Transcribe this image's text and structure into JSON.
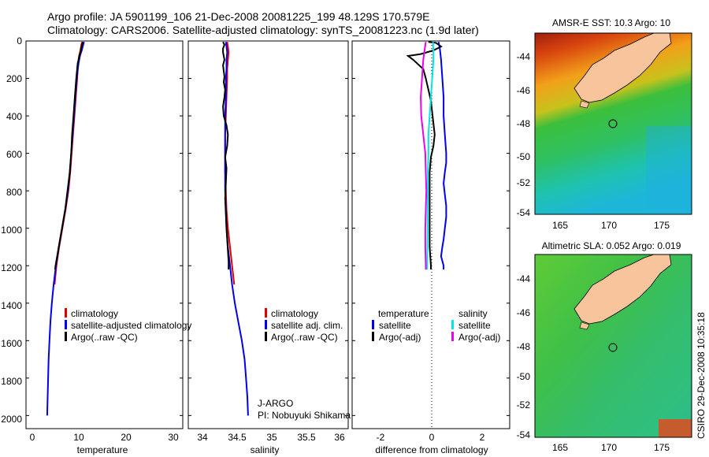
{
  "header": {
    "line1": "Argo profile: JA 5901199_106 21-Dec-2008 20081225_199 48.129S 170.579E",
    "line2": "Climatology: CARS2006. Satellite-adjusted climatology: synTS_20081223.nc (1.9d later)"
  },
  "credit": "CSIRO 29-Dec-2008 10:35:18",
  "colors": {
    "climatology": "#dd0000",
    "satellite_temp": "#0000ee",
    "argo": "#000000",
    "satellite_salt": "#00e5e5",
    "argo_salt_adj": "#ee00ee",
    "land": "#f7c49c"
  },
  "chart_data": [
    {
      "type": "line",
      "name": "temperature-profile",
      "xlabel": "temperature",
      "xticks": [
        "0",
        "10",
        "20",
        "30"
      ],
      "xlim": [
        -2,
        32
      ],
      "ylim": [
        0,
        2070
      ],
      "y_inverted": true,
      "yticks": [
        "0",
        "200",
        "400",
        "600",
        "800",
        "1000",
        "1200",
        "1400",
        "1600",
        "1800",
        "2000"
      ],
      "legend": [
        "climatology",
        "satellite-adjusted climatology",
        "Argo(..raw -QC)"
      ],
      "series": [
        {
          "name": "climatology",
          "points": [
            [
              10.2,
              5
            ],
            [
              10.0,
              20
            ],
            [
              9.8,
              50
            ],
            [
              9.5,
              80
            ],
            [
              9.3,
              120
            ],
            [
              9.1,
              200
            ],
            [
              8.8,
              300
            ],
            [
              8.5,
              400
            ],
            [
              8.2,
              500
            ],
            [
              7.9,
              600
            ],
            [
              7.6,
              700
            ],
            [
              7.2,
              800
            ],
            [
              6.6,
              900
            ],
            [
              5.9,
              1000
            ],
            [
              5.2,
              1100
            ],
            [
              4.6,
              1200
            ],
            [
              4.2,
              1300
            ]
          ]
        },
        {
          "name": "satellite-adjusted climatology",
          "points": [
            [
              10.6,
              5
            ],
            [
              10.4,
              20
            ],
            [
              10.1,
              50
            ],
            [
              9.7,
              80
            ],
            [
              9.4,
              120
            ],
            [
              9.0,
              200
            ],
            [
              8.7,
              300
            ],
            [
              8.4,
              400
            ],
            [
              8.1,
              500
            ],
            [
              7.8,
              600
            ],
            [
              7.5,
              700
            ],
            [
              7.1,
              800
            ],
            [
              6.5,
              900
            ],
            [
              5.8,
              1000
            ],
            [
              5.1,
              1100
            ],
            [
              4.5,
              1200
            ],
            [
              4.0,
              1300
            ],
            [
              3.6,
              1400
            ],
            [
              3.3,
              1500
            ],
            [
              3.1,
              1600
            ],
            [
              2.9,
              1700
            ],
            [
              2.8,
              1800
            ],
            [
              2.7,
              1900
            ],
            [
              2.6,
              2000
            ]
          ]
        },
        {
          "name": "Argo(..raw -QC)",
          "points": [
            [
              10.3,
              5
            ],
            [
              10.2,
              15
            ],
            [
              10.0,
              40
            ],
            [
              9.8,
              60
            ],
            [
              9.5,
              90
            ],
            [
              9.2,
              120
            ],
            [
              8.9,
              200
            ],
            [
              8.6,
              300
            ],
            [
              8.3,
              400
            ],
            [
              8.0,
              500
            ],
            [
              7.8,
              600
            ],
            [
              7.5,
              700
            ],
            [
              7.0,
              800
            ],
            [
              6.5,
              900
            ],
            [
              5.8,
              1000
            ],
            [
              5.1,
              1100
            ],
            [
              4.4,
              1200
            ],
            [
              4.3,
              1220
            ]
          ]
        }
      ]
    },
    {
      "type": "line",
      "name": "salinity-profile",
      "xlabel": "salinity",
      "xticks": [
        "34",
        "34.5",
        "35",
        "35.5",
        "36"
      ],
      "xlim": [
        33.8,
        36.1
      ],
      "ylim": [
        0,
        2070
      ],
      "y_inverted": true,
      "legend": [
        "climatology",
        "satellite adj. clim.",
        "Argo(..raw -QC)"
      ],
      "annotation": [
        "J-ARGO",
        "PI: Nobuyuki Shikama"
      ],
      "series": [
        {
          "name": "climatology",
          "points": [
            [
              34.36,
              5
            ],
            [
              34.37,
              30
            ],
            [
              34.38,
              60
            ],
            [
              34.37,
              100
            ],
            [
              34.36,
              150
            ],
            [
              34.36,
              200
            ],
            [
              34.35,
              300
            ],
            [
              34.34,
              400
            ],
            [
              34.33,
              500
            ],
            [
              34.33,
              600
            ],
            [
              34.33,
              700
            ],
            [
              34.34,
              800
            ],
            [
              34.35,
              900
            ],
            [
              34.37,
              1000
            ],
            [
              34.4,
              1100
            ],
            [
              34.43,
              1200
            ],
            [
              34.46,
              1300
            ]
          ]
        },
        {
          "name": "satellite adj. clim.",
          "points": [
            [
              34.34,
              5
            ],
            [
              34.35,
              30
            ],
            [
              34.36,
              60
            ],
            [
              34.35,
              100
            ],
            [
              34.35,
              150
            ],
            [
              34.34,
              200
            ],
            [
              34.34,
              300
            ],
            [
              34.33,
              400
            ],
            [
              34.33,
              500
            ],
            [
              34.33,
              600
            ],
            [
              34.33,
              700
            ],
            [
              34.33,
              800
            ],
            [
              34.34,
              900
            ],
            [
              34.35,
              1000
            ],
            [
              34.37,
              1100
            ],
            [
              34.4,
              1200
            ],
            [
              34.43,
              1300
            ],
            [
              34.47,
              1400
            ],
            [
              34.52,
              1500
            ],
            [
              34.57,
              1600
            ],
            [
              34.61,
              1700
            ],
            [
              34.63,
              1800
            ],
            [
              34.65,
              1900
            ],
            [
              34.66,
              2000
            ]
          ]
        },
        {
          "name": "Argo(..raw -QC)",
          "points": [
            [
              34.3,
              5
            ],
            [
              34.32,
              20
            ],
            [
              34.3,
              40
            ],
            [
              34.3,
              60
            ],
            [
              34.31,
              80
            ],
            [
              34.32,
              100
            ],
            [
              34.3,
              130
            ],
            [
              34.31,
              160
            ],
            [
              34.32,
              190
            ],
            [
              34.31,
              220
            ],
            [
              34.33,
              260
            ],
            [
              34.32,
              300
            ],
            [
              34.3,
              350
            ],
            [
              34.31,
              400
            ],
            [
              34.35,
              450
            ],
            [
              34.37,
              500
            ],
            [
              34.36,
              560
            ],
            [
              34.33,
              620
            ],
            [
              34.35,
              680
            ],
            [
              34.34,
              760
            ],
            [
              34.33,
              840
            ],
            [
              34.34,
              920
            ],
            [
              34.35,
              1000
            ],
            [
              34.36,
              1060
            ],
            [
              34.37,
              1120
            ],
            [
              34.38,
              1180
            ],
            [
              34.38,
              1220
            ]
          ]
        }
      ]
    },
    {
      "type": "line",
      "name": "difference-profile",
      "xlabel": "difference from climatology",
      "xticks": [
        "-2",
        "0",
        "2"
      ],
      "xlim": [
        -3.0,
        3.2
      ],
      "ylim": [
        0,
        2070
      ],
      "y_inverted": true,
      "legend_headers": [
        "temperature",
        "salinity"
      ],
      "legend": [
        "satellite",
        "Argo(-adj)",
        "satellite",
        "Argo(-adj)"
      ],
      "series": [
        {
          "name": "temperature satellite",
          "points": [
            [
              0.4,
              5
            ],
            [
              0.45,
              40
            ],
            [
              0.5,
              100
            ],
            [
              0.55,
              200
            ],
            [
              0.6,
              300
            ],
            [
              0.6,
              400
            ],
            [
              0.65,
              500
            ],
            [
              0.7,
              600
            ],
            [
              0.7,
              650
            ],
            [
              0.65,
              700
            ],
            [
              0.6,
              760
            ],
            [
              0.65,
              820
            ],
            [
              0.7,
              880
            ],
            [
              0.7,
              940
            ],
            [
              0.65,
              1000
            ],
            [
              0.6,
              1060
            ],
            [
              0.55,
              1100
            ],
            [
              0.5,
              1150
            ],
            [
              0.6,
              1200
            ],
            [
              0.6,
              1220
            ]
          ]
        },
        {
          "name": "temperature Argo(-adj)",
          "points": [
            [
              0.0,
              5
            ],
            [
              0.3,
              10
            ],
            [
              0.5,
              30
            ],
            [
              0.2,
              50
            ],
            [
              -0.3,
              70
            ],
            [
              -0.8,
              80
            ],
            [
              -0.6,
              100
            ],
            [
              -0.2,
              150
            ],
            [
              -0.1,
              200
            ],
            [
              0.0,
              260
            ],
            [
              0.1,
              320
            ],
            [
              0.15,
              380
            ],
            [
              0.2,
              440
            ],
            [
              0.25,
              500
            ],
            [
              0.2,
              560
            ],
            [
              0.1,
              620
            ],
            [
              0.05,
              700
            ],
            [
              0.05,
              800
            ],
            [
              0.05,
              900
            ],
            [
              0.05,
              1000
            ],
            [
              0.05,
              1100
            ],
            [
              0.1,
              1200
            ],
            [
              0.1,
              1220
            ]
          ]
        },
        {
          "name": "salinity satellite",
          "points": [
            [
              0.18,
              5
            ],
            [
              0.2,
              50
            ],
            [
              0.2,
              100
            ],
            [
              0.15,
              200
            ],
            [
              0.1,
              300
            ],
            [
              0.05,
              400
            ],
            [
              0.0,
              500
            ],
            [
              0.0,
              600
            ],
            [
              -0.02,
              700
            ],
            [
              -0.02,
              800
            ],
            [
              -0.03,
              900
            ],
            [
              -0.03,
              1000
            ],
            [
              -0.04,
              1100
            ],
            [
              -0.05,
              1200
            ],
            [
              -0.05,
              1220
            ]
          ]
        },
        {
          "name": "salinity Argo(-adj)",
          "points": [
            [
              -0.1,
              5
            ],
            [
              -0.15,
              50
            ],
            [
              -0.2,
              100
            ],
            [
              -0.25,
              200
            ],
            [
              -0.3,
              300
            ],
            [
              -0.28,
              400
            ],
            [
              -0.2,
              500
            ],
            [
              -0.12,
              600
            ],
            [
              -0.1,
              700
            ],
            [
              -0.08,
              800
            ],
            [
              -0.1,
              900
            ],
            [
              -0.12,
              1000
            ],
            [
              -0.12,
              1100
            ],
            [
              -0.1,
              1200
            ],
            [
              -0.1,
              1220
            ]
          ]
        }
      ]
    },
    {
      "type": "heatmap",
      "name": "sst-map",
      "title": "AMSR-E SST: 10.3 Argo: 10",
      "xticks": [
        "165",
        "170",
        "175"
      ],
      "yticks": [
        "-44",
        "-46",
        "-48",
        "-50",
        "-52",
        "-54"
      ],
      "xlim": [
        163,
        178.2
      ],
      "ylim": [
        -54.2,
        -42.3
      ],
      "argo_position": [
        170.58,
        -48.13
      ]
    },
    {
      "type": "heatmap",
      "name": "sla-map",
      "title": "Altimetric SLA: 0.052 Argo: 0.019",
      "xticks": [
        "165",
        "170",
        "175"
      ],
      "yticks": [
        "-44",
        "-46",
        "-48",
        "-50",
        "-52",
        "-54"
      ],
      "xlim": [
        163,
        178.2
      ],
      "ylim": [
        -54.2,
        -42.3
      ],
      "argo_position": [
        170.58,
        -48.13
      ]
    }
  ]
}
